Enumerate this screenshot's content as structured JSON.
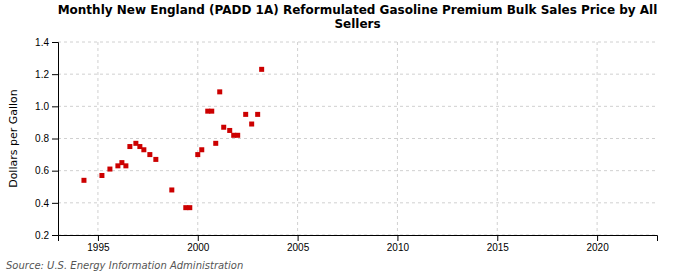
{
  "chart_data": {
    "type": "scatter",
    "title": "Monthly New England (PADD 1A) Reformulated Gasoline Premium Bulk Sales Price by All\nSellers",
    "y_label": "Dollars per Gallon",
    "annotations": [
      "Source: U.S. Energy Information Administration"
    ],
    "color": "#cc0000",
    "marker": "square",
    "grid": true,
    "xlim": [
      1993.0,
      2023.0
    ],
    "ylim": [
      0.2,
      1.4
    ],
    "xticks": [
      1995,
      2000,
      2005,
      2010,
      2015,
      2020
    ],
    "yticks": [
      0.2,
      0.4,
      0.6,
      0.8,
      {
        "value": 1.0,
        "label": "1.0"
      },
      1.2,
      1.4
    ],
    "x": [
      1994.3,
      1995.2,
      1995.6,
      1996.0,
      1996.2,
      1996.4,
      1996.6,
      1996.9,
      1997.1,
      1997.3,
      1997.6,
      1997.9,
      1998.7,
      1999.4,
      1999.6,
      2000.0,
      2000.2,
      2000.5,
      2000.7,
      2000.9,
      2001.1,
      2001.3,
      2001.6,
      2001.8,
      2002.0,
      2002.4,
      2002.7,
      2003.0,
      2003.2
    ],
    "y": [
      0.54,
      0.57,
      0.61,
      0.63,
      0.65,
      0.63,
      0.75,
      0.77,
      0.75,
      0.73,
      0.7,
      0.67,
      0.48,
      0.37,
      0.37,
      0.7,
      0.73,
      0.97,
      0.97,
      0.77,
      1.09,
      0.87,
      0.85,
      0.82,
      0.82,
      0.95,
      0.89,
      0.95,
      1.23
    ]
  }
}
